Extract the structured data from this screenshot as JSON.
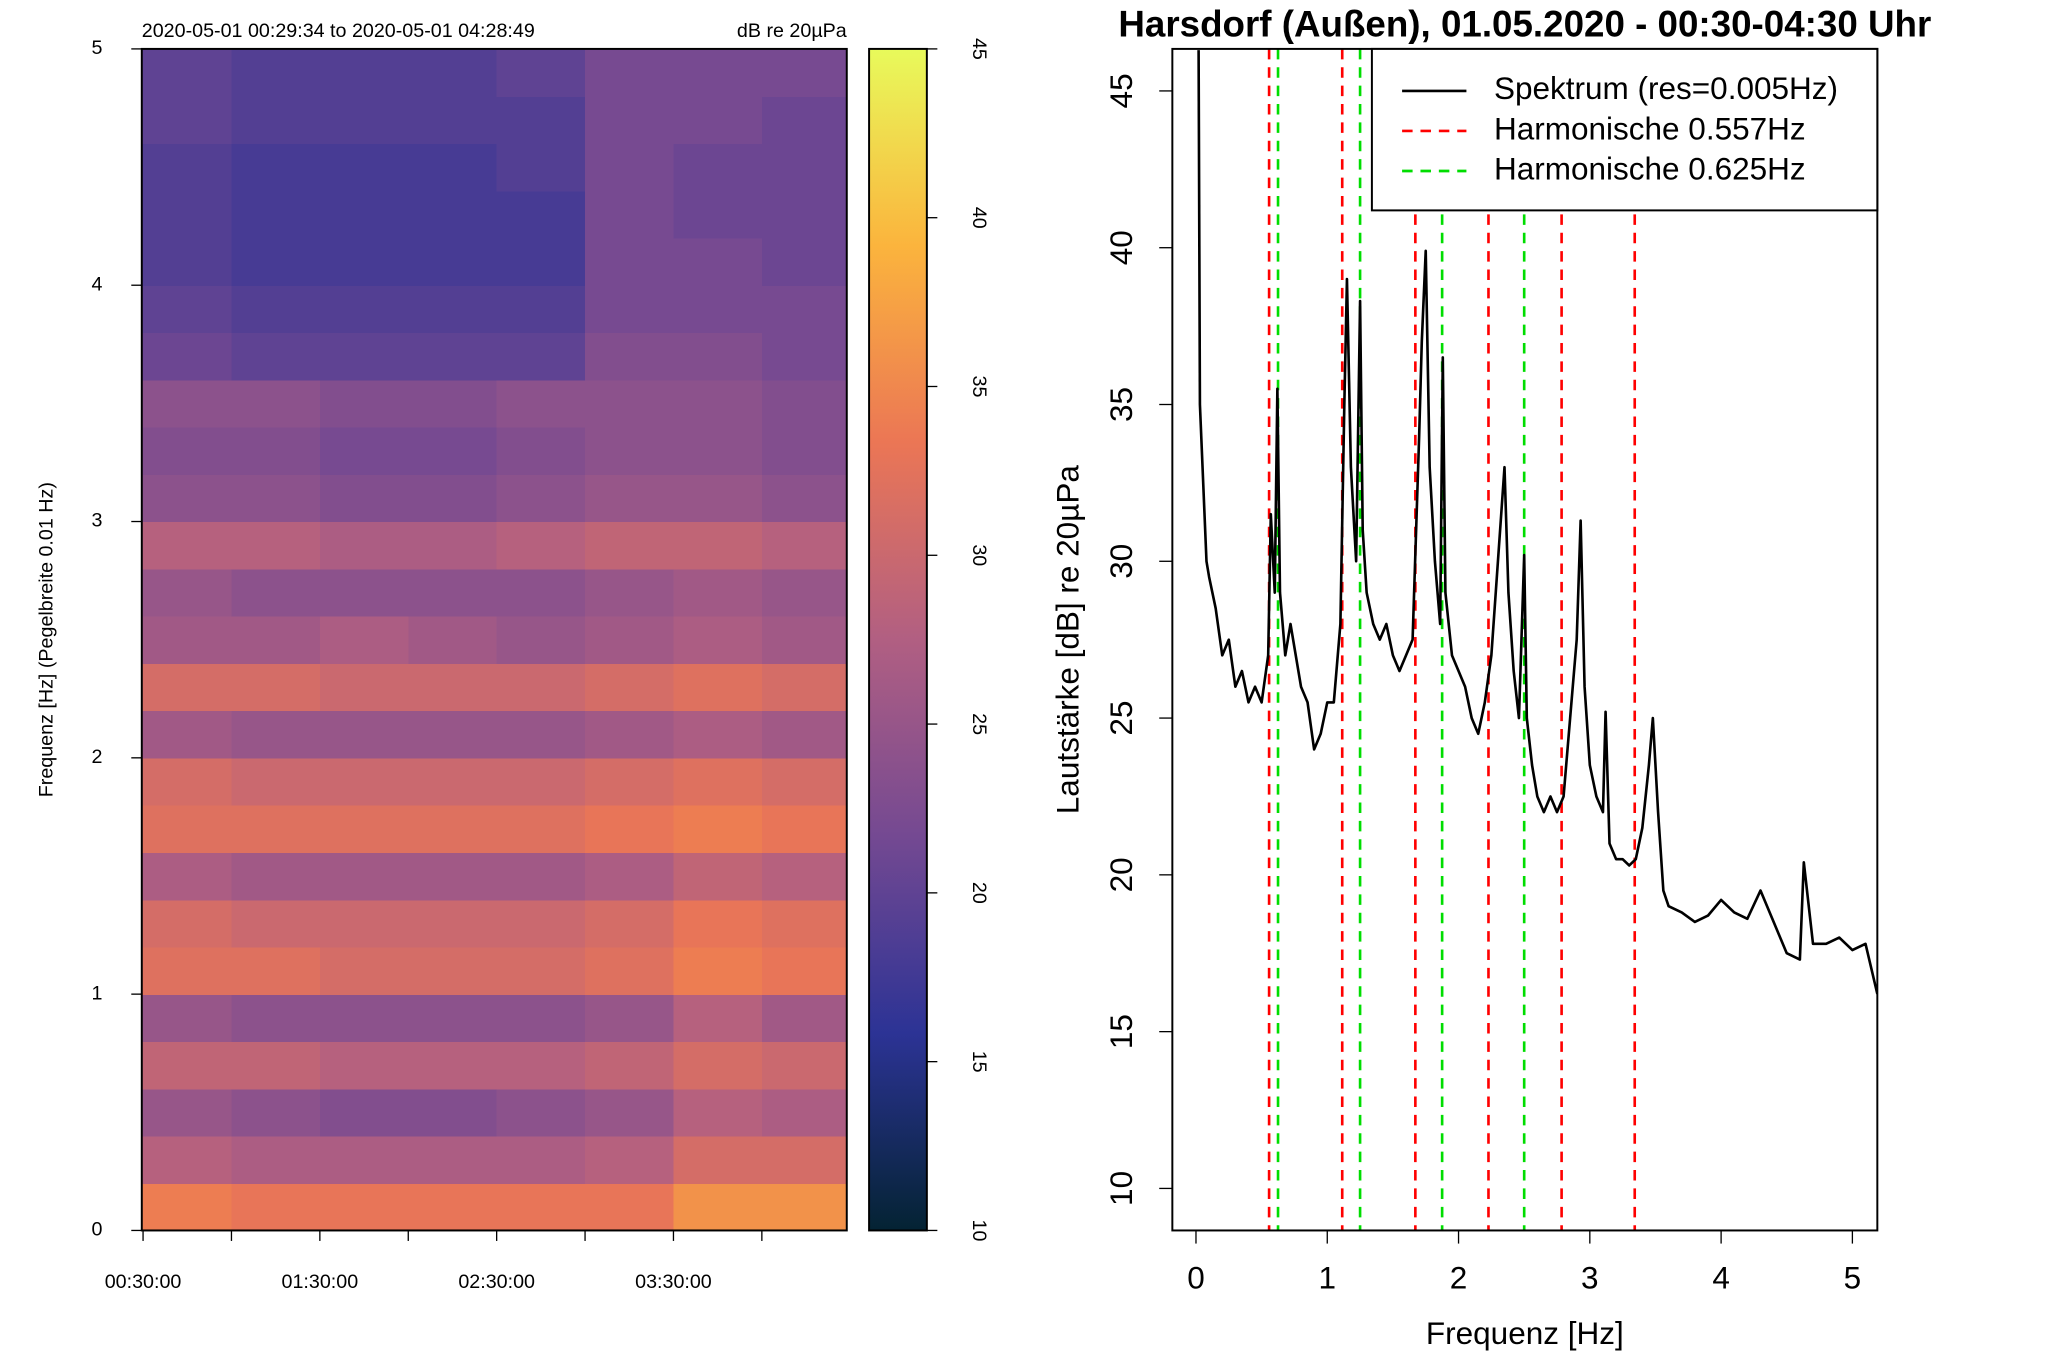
{
  "chart_data": [
    {
      "type": "heatmap",
      "subtitle": "2020-05-01 00:29:34 to 2020-05-01 04:28:49",
      "colorbar_label": "dB re 20µPa",
      "ylabel": "Frequenz [Hz] (Pegelbreite 0.01 Hz)",
      "xlim": [
        "00:29:34",
        "04:28:49"
      ],
      "xticks": [
        "00:30:00",
        "01:30:00",
        "02:30:00",
        "03:30:00"
      ],
      "xminorticks": [
        "01:00:00",
        "02:00:00",
        "03:00:00",
        "04:00:00"
      ],
      "ylim": [
        0,
        5
      ],
      "yticks": [
        0,
        1,
        2,
        3,
        4,
        5
      ],
      "zlim": [
        10,
        45
      ],
      "zticks": [
        10,
        15,
        20,
        25,
        30,
        35,
        40,
        45
      ],
      "colorscale": [
        "#042333",
        "#2c3395",
        "#744992",
        "#b15f82",
        "#eb7655",
        "#fbb43d",
        "#e8fa5b"
      ],
      "x_bins": [
        "00:29:34",
        "01:00:00",
        "01:30:00",
        "02:00:00",
        "02:30:00",
        "03:00:00",
        "03:30:00",
        "04:00:00",
        "04:28:49"
      ],
      "y_bins": [
        0,
        0.2,
        0.4,
        0.6,
        0.8,
        1,
        1.2,
        1.4,
        1.6,
        1.8,
        2,
        2.2,
        2.4,
        2.6,
        2.8,
        3,
        3.2,
        3.4,
        3.6,
        3.8,
        4,
        4.2,
        4.4,
        4.6,
        4.8,
        5
      ],
      "z": [
        [
          34,
          33,
          33,
          33,
          33,
          33,
          36,
          36
        ],
        [
          28,
          27,
          27,
          27,
          27,
          28,
          31,
          31
        ],
        [
          25,
          24,
          23,
          23,
          24,
          25,
          28,
          27
        ],
        [
          29,
          29,
          28,
          28,
          28,
          29,
          31,
          30
        ],
        [
          25,
          24,
          24,
          24,
          24,
          25,
          28,
          26
        ],
        [
          32,
          32,
          31,
          31,
          31,
          32,
          34,
          33
        ],
        [
          31,
          30,
          30,
          30,
          30,
          31,
          33,
          32
        ],
        [
          27,
          26,
          26,
          26,
          26,
          27,
          29,
          28
        ],
        [
          32,
          32,
          32,
          32,
          32,
          33,
          34,
          33
        ],
        [
          31,
          30,
          30,
          30,
          30,
          31,
          32,
          31
        ],
        [
          26,
          25,
          25,
          25,
          25,
          26,
          27,
          26
        ],
        [
          31,
          31,
          30,
          30,
          30,
          31,
          32,
          31
        ],
        [
          26,
          26,
          27,
          26,
          25,
          26,
          27,
          26
        ],
        [
          25,
          24,
          24,
          24,
          24,
          25,
          26,
          25
        ],
        [
          28,
          28,
          27,
          27,
          28,
          29,
          29,
          28
        ],
        [
          24,
          24,
          23,
          23,
          24,
          25,
          25,
          24
        ],
        [
          23,
          23,
          22,
          22,
          23,
          24,
          24,
          23
        ],
        [
          24,
          24,
          23,
          23,
          24,
          24,
          24,
          23
        ],
        [
          21,
          20,
          20,
          20,
          20,
          23,
          23,
          22
        ],
        [
          20,
          19,
          19,
          19,
          19,
          22,
          22,
          22
        ],
        [
          19,
          18,
          18,
          18,
          18,
          22,
          22,
          21
        ],
        [
          19,
          18,
          18,
          18,
          18,
          22,
          21,
          21
        ],
        [
          19,
          18,
          18,
          18,
          19,
          22,
          21,
          21
        ],
        [
          20,
          19,
          19,
          19,
          19,
          22,
          22,
          21
        ],
        [
          20,
          19,
          19,
          19,
          20,
          22,
          22,
          22
        ]
      ]
    },
    {
      "type": "line",
      "title": "Harsdorf (Außen), 01.05.2020 - 00:30-04:30 Uhr",
      "xlabel": "Frequenz [Hz]",
      "ylabel": "Lautstärke [dB] re 20µPa",
      "xlim": [
        -0.18,
        5.19
      ],
      "ylim": [
        8.66,
        46.34
      ],
      "xticks": [
        0,
        1,
        2,
        3,
        4,
        5
      ],
      "yticks": [
        10,
        15,
        20,
        25,
        30,
        35,
        40,
        45
      ],
      "legend": "topright",
      "series": [
        {
          "name": "Spektrum (res=0.005Hz)",
          "color": "#000000",
          "x": [
            0.02,
            0.03,
            0.05,
            0.08,
            0.1,
            0.15,
            0.2,
            0.25,
            0.3,
            0.35,
            0.4,
            0.45,
            0.5,
            0.55,
            0.57,
            0.6,
            0.62,
            0.64,
            0.68,
            0.72,
            0.76,
            0.8,
            0.85,
            0.9,
            0.95,
            1.0,
            1.05,
            1.1,
            1.13,
            1.15,
            1.18,
            1.22,
            1.25,
            1.27,
            1.3,
            1.35,
            1.4,
            1.45,
            1.5,
            1.55,
            1.6,
            1.65,
            1.7,
            1.72,
            1.75,
            1.78,
            1.82,
            1.86,
            1.88,
            1.9,
            1.95,
            2.0,
            2.05,
            2.1,
            2.15,
            2.2,
            2.25,
            2.3,
            2.35,
            2.38,
            2.42,
            2.46,
            2.5,
            2.52,
            2.56,
            2.6,
            2.65,
            2.7,
            2.75,
            2.8,
            2.85,
            2.9,
            2.93,
            2.96,
            3.0,
            3.05,
            3.1,
            3.12,
            3.15,
            3.2,
            3.25,
            3.3,
            3.35,
            3.4,
            3.45,
            3.48,
            3.52,
            3.56,
            3.6,
            3.7,
            3.8,
            3.9,
            4.0,
            4.1,
            4.2,
            4.3,
            4.4,
            4.5,
            4.6,
            4.63,
            4.7,
            4.8,
            4.9,
            5.0,
            5.1,
            5.19
          ],
          "values": [
            46.3,
            35,
            33,
            30,
            29.5,
            28.5,
            27,
            27.5,
            26,
            26.5,
            25.5,
            26,
            25.5,
            27,
            31.5,
            29,
            35.5,
            29,
            27,
            28,
            27,
            26,
            25.5,
            24,
            24.5,
            25.5,
            25.5,
            28,
            35,
            39,
            33,
            30,
            38.3,
            31,
            29,
            28,
            27.5,
            28,
            27,
            26.5,
            27,
            27.5,
            34,
            37,
            39.9,
            33,
            30,
            28,
            36.5,
            29,
            27,
            26.5,
            26,
            25,
            24.5,
            25.5,
            27,
            30,
            33,
            29,
            26.5,
            25,
            30.2,
            25,
            23.5,
            22.5,
            22,
            22.5,
            22,
            22.5,
            25,
            27.5,
            31.3,
            26,
            23.5,
            22.5,
            22,
            25.2,
            21,
            20.5,
            20.5,
            20.3,
            20.5,
            21.5,
            23.5,
            25,
            22,
            19.5,
            19,
            18.8,
            18.5,
            18.7,
            19.2,
            18.8,
            18.6,
            19.5,
            18.5,
            17.5,
            17.3,
            20.4,
            17.8,
            17.8,
            18.0,
            17.6,
            17.8,
            16.2
          ]
        },
        {
          "name": "Harmonische 0.557Hz",
          "color": "#ff0000",
          "dashed": true,
          "vlines": [
            0.557,
            1.114,
            1.671,
            2.228,
            2.785,
            3.342
          ]
        },
        {
          "name": "Harmonische 0.625Hz",
          "color": "#00dd00",
          "dashed": true,
          "vlines": [
            0.625,
            1.25,
            1.875,
            2.5
          ]
        }
      ]
    }
  ]
}
